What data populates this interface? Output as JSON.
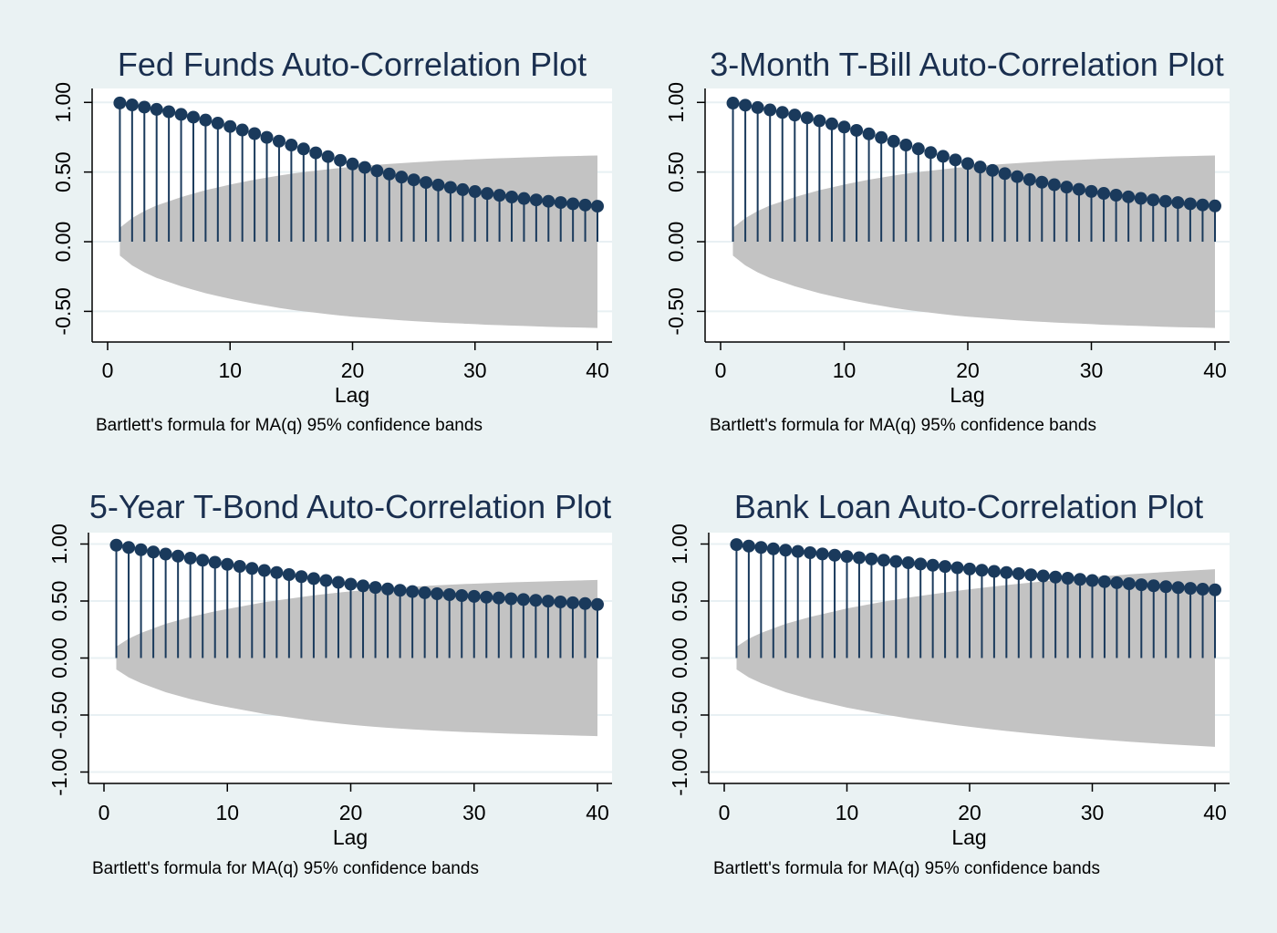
{
  "style": {
    "background": "#eaf2f3",
    "plot_background": "#ffffff",
    "band_color": "#c3c3c3",
    "stem_color": "#1a3a5c",
    "marker_color": "#1a3a5c",
    "title_color": "#1a2f4f",
    "grid_color": "#e8f0f3"
  },
  "chart_data": [
    {
      "type": "stem",
      "title": "Fed Funds Auto-Correlation Plot",
      "xlabel": "Lag",
      "note": "Bartlett's formula for MA(q) 95% confidence bands",
      "xlim": [
        0,
        40
      ],
      "xticks": [
        0,
        10,
        20,
        30,
        40
      ],
      "ylim": [
        -0.72,
        1.1
      ],
      "yticks": [
        -0.5,
        0,
        0.5,
        1
      ],
      "ytick_labels": [
        "-0.50",
        "0.00",
        "0.50",
        "1.00"
      ],
      "grid": true,
      "lags": [
        1,
        2,
        3,
        4,
        5,
        6,
        7,
        8,
        9,
        10,
        11,
        12,
        13,
        14,
        15,
        16,
        17,
        18,
        19,
        20,
        21,
        22,
        23,
        24,
        25,
        26,
        27,
        28,
        29,
        30,
        31,
        32,
        33,
        34,
        35,
        36,
        37,
        38,
        39,
        40
      ],
      "values": [
        0.996,
        0.982,
        0.966,
        0.95,
        0.933,
        0.914,
        0.894,
        0.873,
        0.851,
        0.827,
        0.802,
        0.776,
        0.749,
        0.722,
        0.694,
        0.666,
        0.638,
        0.611,
        0.584,
        0.558,
        0.533,
        0.509,
        0.486,
        0.464,
        0.444,
        0.425,
        0.407,
        0.39,
        0.374,
        0.36,
        0.346,
        0.333,
        0.321,
        0.31,
        0.3,
        0.29,
        0.281,
        0.272,
        0.263,
        0.255
      ],
      "band": [
        0.1,
        0.17,
        0.22,
        0.26,
        0.29,
        0.32,
        0.345,
        0.37,
        0.39,
        0.41,
        0.428,
        0.445,
        0.46,
        0.475,
        0.488,
        0.5,
        0.51,
        0.52,
        0.53,
        0.538,
        0.545,
        0.552,
        0.558,
        0.564,
        0.57,
        0.575,
        0.58,
        0.584,
        0.588,
        0.592,
        0.596,
        0.599,
        0.602,
        0.605,
        0.608,
        0.611,
        0.613,
        0.615,
        0.617,
        0.619
      ]
    },
    {
      "type": "stem",
      "title": "3-Month T-Bill Auto-Correlation Plot",
      "xlabel": "Lag",
      "note": "Bartlett's formula for MA(q) 95% confidence bands",
      "xlim": [
        0,
        40
      ],
      "xticks": [
        0,
        10,
        20,
        30,
        40
      ],
      "ylim": [
        -0.72,
        1.1
      ],
      "yticks": [
        -0.5,
        0,
        0.5,
        1
      ],
      "ytick_labels": [
        "-0.50",
        "0.00",
        "0.50",
        "1.00"
      ],
      "grid": true,
      "lags": [
        1,
        2,
        3,
        4,
        5,
        6,
        7,
        8,
        9,
        10,
        11,
        12,
        13,
        14,
        15,
        16,
        17,
        18,
        19,
        20,
        21,
        22,
        23,
        24,
        25,
        26,
        27,
        28,
        29,
        30,
        31,
        32,
        33,
        34,
        35,
        36,
        37,
        38,
        39,
        40
      ],
      "values": [
        0.995,
        0.98,
        0.963,
        0.946,
        0.928,
        0.909,
        0.889,
        0.868,
        0.846,
        0.823,
        0.799,
        0.774,
        0.748,
        0.721,
        0.694,
        0.667,
        0.64,
        0.613,
        0.587,
        0.561,
        0.536,
        0.512,
        0.489,
        0.467,
        0.446,
        0.427,
        0.409,
        0.392,
        0.376,
        0.361,
        0.347,
        0.334,
        0.322,
        0.311,
        0.3,
        0.29,
        0.281,
        0.272,
        0.264,
        0.257
      ],
      "band": [
        0.1,
        0.17,
        0.22,
        0.26,
        0.29,
        0.32,
        0.345,
        0.37,
        0.39,
        0.41,
        0.428,
        0.445,
        0.46,
        0.475,
        0.488,
        0.5,
        0.51,
        0.52,
        0.53,
        0.538,
        0.545,
        0.552,
        0.558,
        0.564,
        0.57,
        0.575,
        0.58,
        0.584,
        0.588,
        0.592,
        0.596,
        0.599,
        0.602,
        0.605,
        0.608,
        0.611,
        0.613,
        0.615,
        0.617,
        0.619
      ]
    },
    {
      "type": "stem",
      "title": "5-Year T-Bond Auto-Correlation Plot",
      "xlabel": "Lag",
      "note": "Bartlett's formula for MA(q) 95% confidence bands",
      "xlim": [
        0,
        40
      ],
      "xticks": [
        0,
        10,
        20,
        30,
        40
      ],
      "ylim": [
        -1.1,
        1.1
      ],
      "yticks": [
        -1,
        -0.5,
        0,
        0.5,
        1
      ],
      "ytick_labels": [
        "-1.00",
        "-0.50",
        "0.00",
        "0.50",
        "1.00"
      ],
      "grid": true,
      "lags": [
        1,
        2,
        3,
        4,
        5,
        6,
        7,
        8,
        9,
        10,
        11,
        12,
        13,
        14,
        15,
        16,
        17,
        18,
        19,
        20,
        21,
        22,
        23,
        24,
        25,
        26,
        27,
        28,
        29,
        30,
        31,
        32,
        33,
        34,
        35,
        36,
        37,
        38,
        39,
        40
      ],
      "values": [
        0.99,
        0.97,
        0.95,
        0.93,
        0.912,
        0.894,
        0.876,
        0.858,
        0.84,
        0.822,
        0.804,
        0.786,
        0.768,
        0.75,
        0.732,
        0.714,
        0.697,
        0.68,
        0.664,
        0.648,
        0.633,
        0.619,
        0.606,
        0.594,
        0.583,
        0.573,
        0.564,
        0.556,
        0.548,
        0.541,
        0.534,
        0.527,
        0.52,
        0.513,
        0.506,
        0.499,
        0.492,
        0.485,
        0.478,
        0.47
      ],
      "band": [
        0.1,
        0.17,
        0.22,
        0.26,
        0.3,
        0.33,
        0.36,
        0.385,
        0.41,
        0.43,
        0.45,
        0.47,
        0.49,
        0.505,
        0.52,
        0.535,
        0.55,
        0.562,
        0.574,
        0.585,
        0.595,
        0.604,
        0.612,
        0.619,
        0.626,
        0.632,
        0.638,
        0.643,
        0.648,
        0.652,
        0.656,
        0.66,
        0.664,
        0.667,
        0.67,
        0.673,
        0.676,
        0.679,
        0.682,
        0.685
      ]
    },
    {
      "type": "stem",
      "title": "Bank Loan Auto-Correlation Plot",
      "xlabel": "Lag",
      "note": "Bartlett's formula for MA(q) 95% confidence bands",
      "xlim": [
        0,
        40
      ],
      "xticks": [
        0,
        10,
        20,
        30,
        40
      ],
      "ylim": [
        -1.1,
        1.1
      ],
      "yticks": [
        -1,
        -0.5,
        0,
        0.5,
        1
      ],
      "ytick_labels": [
        "-1.00",
        "-0.50",
        "0.00",
        "0.50",
        "1.00"
      ],
      "grid": true,
      "lags": [
        1,
        2,
        3,
        4,
        5,
        6,
        7,
        8,
        9,
        10,
        11,
        12,
        13,
        14,
        15,
        16,
        17,
        18,
        19,
        20,
        21,
        22,
        23,
        24,
        25,
        26,
        27,
        28,
        29,
        30,
        31,
        32,
        33,
        34,
        35,
        36,
        37,
        38,
        39,
        40
      ],
      "values": [
        0.995,
        0.982,
        0.97,
        0.958,
        0.946,
        0.935,
        0.924,
        0.913,
        0.902,
        0.891,
        0.88,
        0.869,
        0.858,
        0.847,
        0.836,
        0.825,
        0.814,
        0.803,
        0.792,
        0.781,
        0.77,
        0.76,
        0.75,
        0.74,
        0.73,
        0.72,
        0.71,
        0.7,
        0.69,
        0.68,
        0.67,
        0.661,
        0.652,
        0.643,
        0.634,
        0.626,
        0.618,
        0.611,
        0.604,
        0.598
      ],
      "band": [
        0.1,
        0.17,
        0.22,
        0.26,
        0.3,
        0.33,
        0.36,
        0.385,
        0.41,
        0.435,
        0.455,
        0.475,
        0.495,
        0.512,
        0.53,
        0.545,
        0.56,
        0.575,
        0.59,
        0.603,
        0.616,
        0.628,
        0.64,
        0.651,
        0.662,
        0.672,
        0.682,
        0.692,
        0.701,
        0.71,
        0.718,
        0.726,
        0.734,
        0.741,
        0.748,
        0.755,
        0.761,
        0.767,
        0.773,
        0.779
      ]
    }
  ]
}
